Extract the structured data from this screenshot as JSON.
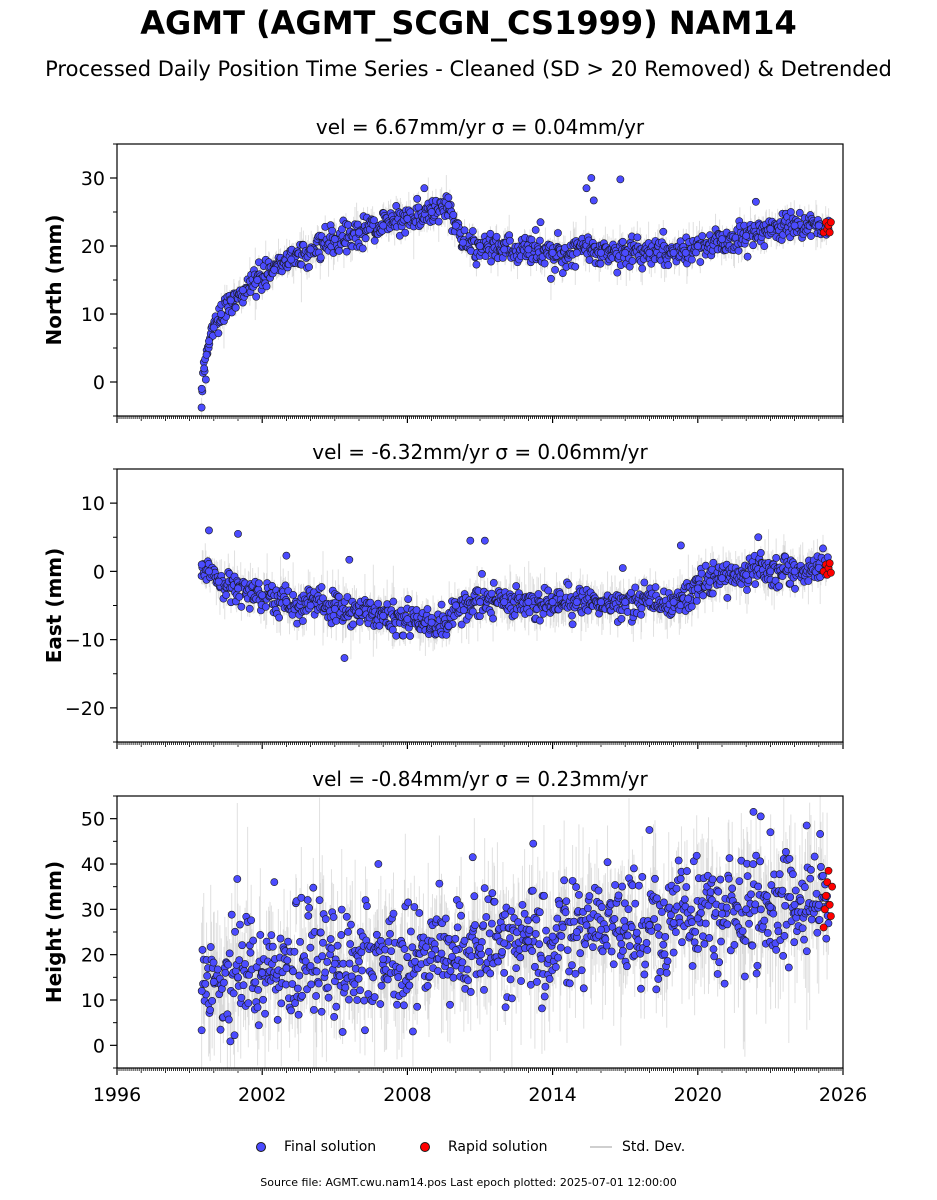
{
  "title": "AGMT (AGMT_SCGN_CS1999) NAM14",
  "subtitle": "Processed Daily Position Time Series - Cleaned (SD > 20 Removed) & Detrended",
  "footer": "Source file: AGMT.cwu.nam14.pos  Last epoch plotted: 2025-07-01 12:00:00",
  "legend": {
    "final": "Final solution",
    "rapid": "Rapid solution",
    "std": "Std. Dev."
  },
  "colors": {
    "final": "#4b4bff",
    "rapid": "#ff0000",
    "std": "#c8c8c8",
    "edge": "#1a1a1a"
  },
  "chart_data": [
    {
      "type": "scatter",
      "title": "vel = 6.67mm/yr   σ = 0.04mm/yr",
      "ylabel": "North (mm)",
      "xlim": [
        1996,
        2026
      ],
      "ylim": [
        -5,
        35
      ],
      "yticks": [
        0,
        10,
        20,
        30
      ],
      "xticks": [
        1996,
        2002,
        2008,
        2014,
        2020,
        2026
      ],
      "show_x_tick_labels": false,
      "series": [
        {
          "name": "Final solution",
          "x": [
            1999.5,
            1999.6,
            1999.7,
            1999.8,
            2000.0,
            2000.3,
            2000.7,
            2001.2,
            2001.8,
            2002.5,
            2003.2,
            2004.0,
            2005.0,
            2006.0,
            2007.0,
            2008.0,
            2009.0,
            2009.7,
            2010.0,
            2010.3,
            2011.0,
            2012.0,
            2013.0,
            2014.0,
            2015.0,
            2016.0,
            2017.0,
            2018.0,
            2019.0,
            2019.5,
            2020.0,
            2021.0,
            2022.0,
            2023.0,
            2024.0,
            2025.0,
            2025.4
          ],
          "y": [
            -1,
            2,
            4,
            6,
            8,
            10,
            12,
            13.5,
            15,
            16.5,
            18,
            19.5,
            21,
            22,
            23,
            24,
            25,
            26,
            23,
            20.5,
            20,
            19.5,
            19.5,
            19,
            19,
            19,
            19,
            19,
            19,
            19,
            20,
            21,
            21.5,
            22.5,
            23,
            23,
            22.5
          ]
        },
        {
          "name": "Rapid solution",
          "x": [
            2025.2,
            2025.3,
            2025.35,
            2025.4,
            2025.45,
            2025.5
          ],
          "y": [
            22,
            23.5,
            22.5,
            23,
            22,
            23.5
          ]
        }
      ],
      "outliers": {
        "x": [
          2015.4,
          2015.6,
          2015.7,
          2016.8,
          2013.5,
          2008.7,
          2022.4
        ],
        "y": [
          28.5,
          30,
          26.7,
          29.8,
          23.5,
          28.5,
          26.5
        ]
      },
      "noise_sd": 1.0,
      "error_sd": 1.2
    },
    {
      "type": "scatter",
      "title": "vel = -6.32mm/yr   σ = 0.06mm/yr",
      "ylabel": "East (mm)",
      "xlim": [
        1996,
        2026
      ],
      "ylim": [
        -25,
        15
      ],
      "yticks": [
        -20,
        -10,
        0,
        10
      ],
      "xticks": [
        1996,
        2002,
        2008,
        2014,
        2020,
        2026
      ],
      "show_x_tick_labels": false,
      "series": [
        {
          "name": "Final solution",
          "x": [
            1999.5,
            1999.8,
            2000.2,
            2001.0,
            2002.0,
            2003.0,
            2004.0,
            2005.0,
            2006.0,
            2007.0,
            2008.0,
            2009.0,
            2009.7,
            2010.0,
            2011.0,
            2012.0,
            2013.0,
            2014.0,
            2015.0,
            2016.0,
            2017.0,
            2018.0,
            2019.0,
            2019.6,
            2020.0,
            2020.5,
            2021.0,
            2022.0,
            2023.0,
            2024.0,
            2025.0,
            2025.4
          ],
          "y": [
            1,
            0,
            -1.5,
            -2.5,
            -3.5,
            -4.5,
            -5,
            -5.5,
            -6,
            -6.5,
            -7,
            -7.5,
            -8,
            -5,
            -4.5,
            -4.5,
            -4.5,
            -4.5,
            -4.5,
            -4.5,
            -4.5,
            -4.5,
            -4.5,
            -4,
            -2.5,
            -1.5,
            -1,
            -0.5,
            0,
            0,
            0.5,
            0.5
          ]
        },
        {
          "name": "Rapid solution",
          "x": [
            2025.2,
            2025.3,
            2025.35,
            2025.4,
            2025.45,
            2025.5
          ],
          "y": [
            0,
            1,
            -0.5,
            0.5,
            1.2,
            -0.2
          ]
        }
      ],
      "outliers": {
        "x": [
          1999.8,
          2001.0,
          2003.0,
          2005.4,
          2005.6,
          2010.6,
          2011.2,
          2016.9,
          2019.3,
          2022.5
        ],
        "y": [
          6,
          5.5,
          2.3,
          -12.7,
          1.7,
          4.5,
          4.5,
          0.5,
          3.8,
          5
        ]
      },
      "noise_sd": 1.1,
      "error_sd": 1.6
    },
    {
      "type": "scatter",
      "title": "vel = -0.84mm/yr   σ = 0.23mm/yr",
      "ylabel": "Height (mm)",
      "xlim": [
        1996,
        2026
      ],
      "ylim": [
        -5,
        55
      ],
      "yticks": [
        0,
        10,
        20,
        30,
        40,
        50
      ],
      "xticks": [
        1996,
        2002,
        2008,
        2014,
        2020,
        2026
      ],
      "show_x_tick_labels": true,
      "series": [
        {
          "name": "Final solution",
          "x": [
            1999.5,
            2000.0,
            2001.0,
            2002.0,
            2003.0,
            2004.0,
            2005.0,
            2006.0,
            2007.0,
            2008.0,
            2009.0,
            2010.0,
            2011.0,
            2012.0,
            2013.0,
            2014.0,
            2015.0,
            2016.0,
            2017.0,
            2018.0,
            2019.0,
            2020.0,
            2021.0,
            2022.0,
            2023.0,
            2024.0,
            2025.0,
            2025.4
          ],
          "y": [
            12,
            14,
            15,
            16,
            17,
            17.5,
            18,
            18.5,
            19,
            19.5,
            20,
            21,
            21.5,
            22.5,
            23,
            24,
            25,
            25.5,
            26,
            26.5,
            27,
            28,
            29,
            30,
            30.5,
            31,
            31,
            31
          ]
        },
        {
          "name": "Rapid solution",
          "x": [
            2025.2,
            2025.25,
            2025.3,
            2025.35,
            2025.4,
            2025.45,
            2025.5,
            2025.55
          ],
          "y": [
            26,
            30,
            33,
            36,
            38.5,
            31,
            28.5,
            35
          ]
        }
      ],
      "outliers": {
        "x": [
          2018.0,
          2022.3,
          2022.6,
          2023.0,
          2024.5,
          2013.2,
          2006.8,
          2002.5,
          2010.7
        ],
        "y": [
          47.5,
          51.5,
          50.5,
          47,
          48.5,
          44.5,
          40,
          36,
          41.5
        ]
      },
      "noise_sd": 6.0,
      "error_sd": 6.5
    }
  ]
}
